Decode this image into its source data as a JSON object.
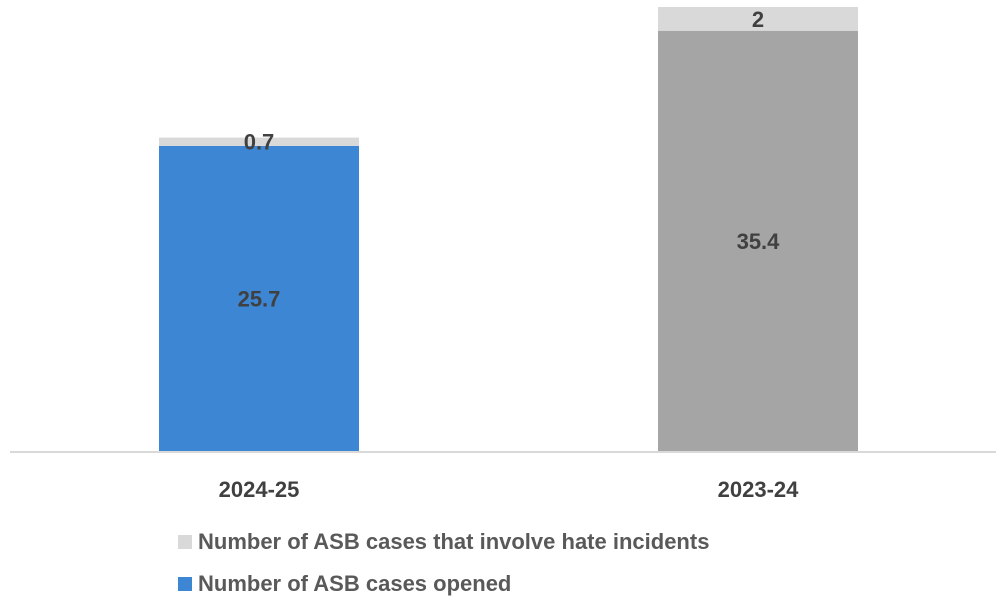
{
  "chart_data": {
    "type": "bar",
    "stacked": true,
    "categories": [
      "2024-25",
      "2023-24"
    ],
    "series": [
      {
        "name": "Number of ASB cases opened",
        "values": [
          25.7,
          35.4
        ],
        "colors": [
          "#3c86d3",
          "#a5a5a5"
        ]
      },
      {
        "name": "Number of ASB cases that involve hate incidents",
        "values": [
          0.7,
          2
        ],
        "colors": [
          "#d9d9d9",
          "#d9d9d9"
        ]
      }
    ],
    "data_labels": [
      [
        "25.7",
        "35.4"
      ],
      [
        "0.7",
        "2"
      ]
    ],
    "ylim": [
      0,
      37.4
    ],
    "grid": false,
    "legend_position": "bottom"
  },
  "legend": {
    "items": [
      {
        "label": "Number of ASB cases that involve hate incidents",
        "color": "#d9d9d9"
      },
      {
        "label": "Number of ASB cases opened",
        "color": "#3c86d3"
      }
    ]
  }
}
